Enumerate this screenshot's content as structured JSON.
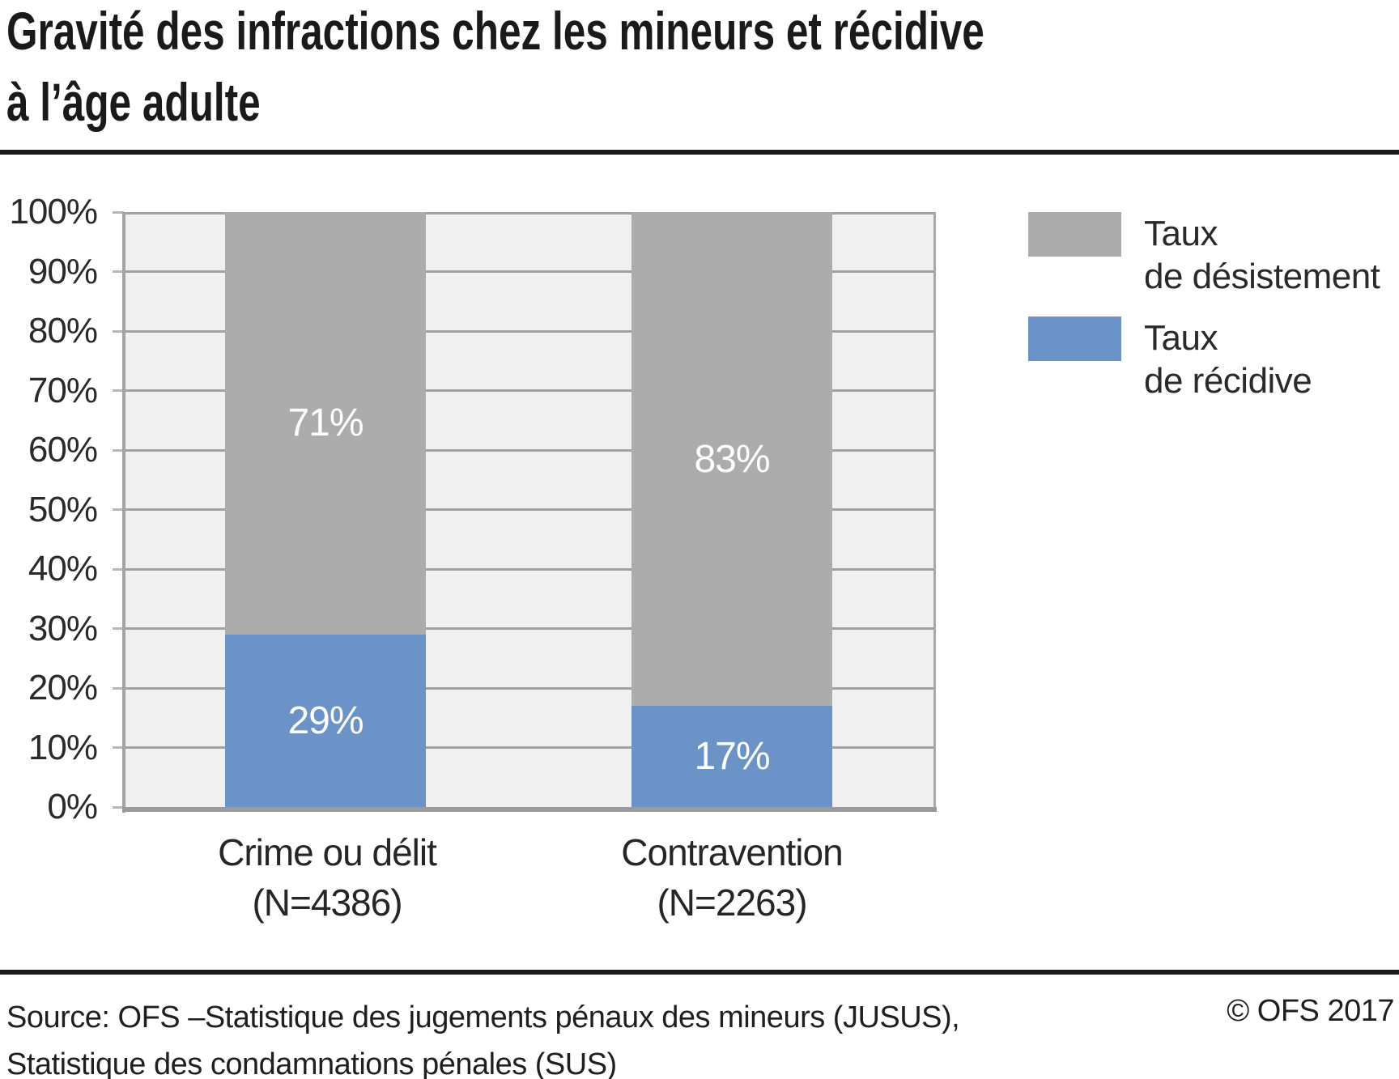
{
  "title": {
    "line1": "Gravité des infractions chez les mineurs et récidive",
    "line2": "à l’âge adulte"
  },
  "chart_data": {
    "type": "bar",
    "stacked": true,
    "title": "Gravité des infractions chez les mineurs et récidive à l’âge adulte",
    "unit": "%",
    "categories": [
      {
        "label": "Crime ou délit",
        "sublabel": "(N=4386)"
      },
      {
        "label": "Contravention",
        "sublabel": "(N=2263)"
      }
    ],
    "series": [
      {
        "name": "Taux de désistement",
        "color": "#acacac",
        "values": [
          71,
          83
        ]
      },
      {
        "name": "Taux de récidive",
        "color": "#6b93c8",
        "values": [
          29,
          17
        ]
      }
    ],
    "ylim": [
      0,
      100
    ],
    "ytick_step": 10,
    "ytick_labels": [
      "0%",
      "10%",
      "20%",
      "30%",
      "40%",
      "50%",
      "60%",
      "70%",
      "80%",
      "90%",
      "100%"
    ],
    "grid": true,
    "legend_position": "right",
    "bar_value_labels": [
      "71%",
      "29%",
      "83%",
      "17%"
    ],
    "colors": {
      "plot_background": "#f0f0f0",
      "gridline": "#a2a2a2",
      "axis": "#9a9a9a",
      "tick": "#b7b7b7",
      "bar_label_text": "#ffffff",
      "text": "#2a2a2a",
      "title_text": "#1a1a1a"
    }
  },
  "legend": {
    "items": [
      {
        "line1": "Taux",
        "line2": "de désistement",
        "color": "#acacac"
      },
      {
        "line1": "Taux",
        "line2": "de récidive",
        "color": "#6b93c8"
      }
    ]
  },
  "footer": {
    "source_line1": "Source: OFS –Statistique des jugements pénaux des mineurs (JUSUS),",
    "source_line2": "Statistique des condamnations pénales (SUS)",
    "copyright": "© OFS 2017"
  }
}
